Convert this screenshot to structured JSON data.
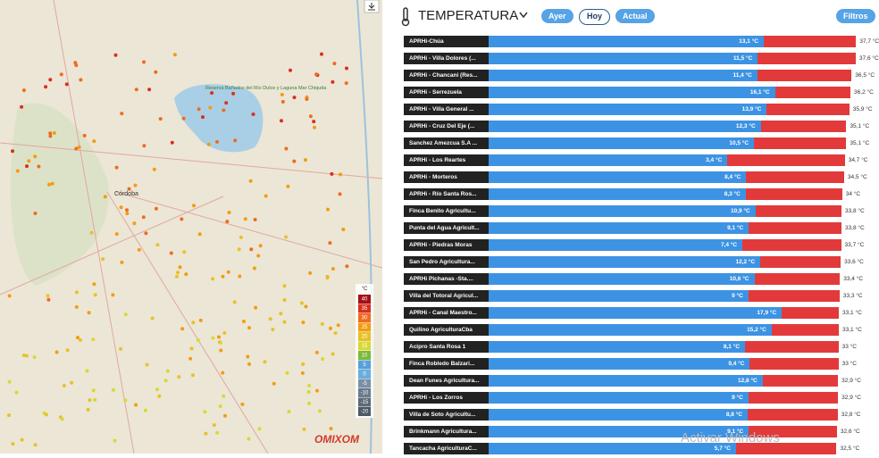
{
  "map": {
    "city": "Córdoba",
    "reserve": "Reserva Bañados del Río Dulce y Laguna Mar Chiquita",
    "logo": "OMIXOM",
    "legend_unit": "°C",
    "legend": [
      {
        "label": "40",
        "color": "#a50f15"
      },
      {
        "label": "35",
        "color": "#d7301f"
      },
      {
        "label": "30",
        "color": "#ef6b1f"
      },
      {
        "label": "25",
        "color": "#f39c12"
      },
      {
        "label": "20",
        "color": "#e6c229"
      },
      {
        "label": "15",
        "color": "#d8d835"
      },
      {
        "label": "10",
        "color": "#7cba3a"
      },
      {
        "label": "5",
        "color": "#5aa0d8"
      },
      {
        "label": "0",
        "color": "#6aaee0"
      },
      {
        "label": "-5",
        "color": "#7a8fa8"
      },
      {
        "label": "-10",
        "color": "#6c7b8b"
      },
      {
        "label": "-15",
        "color": "#5c6a78"
      },
      {
        "label": "-20",
        "color": "#4c5966"
      }
    ]
  },
  "panel": {
    "title": "TEMPERATURA",
    "buttons": [
      "Ayer",
      "Hoy",
      "Actual"
    ],
    "filters": "Filtros",
    "watermark": "Activar Windows",
    "rows": [
      {
        "name": "APRHi-Chúa",
        "min": 13.1,
        "min_label": "13,1 °C",
        "max": 37.7,
        "max_label": "37,7 °C"
      },
      {
        "name": "APRHi - Villa Dolores (...",
        "min": 11.5,
        "min_label": "11,5 °C",
        "max": 37.6,
        "max_label": "37,6 °C"
      },
      {
        "name": "APRHi - Chancani (Res...",
        "min": 11.4,
        "min_label": "11,4 °C",
        "max": 36.5,
        "max_label": "36,5 °C"
      },
      {
        "name": "APRHi - Serrezuela",
        "min": 16.1,
        "min_label": "16,1 °C",
        "max": 36.2,
        "max_label": "36,2 °C"
      },
      {
        "name": "APRHi - Villa General ...",
        "min": 13.9,
        "min_label": "13,9 °C",
        "max": 35.9,
        "max_label": "35,9 °C"
      },
      {
        "name": "APRHi - Cruz Del Eje (...",
        "min": 12.3,
        "min_label": "12,3 °C",
        "max": 35.1,
        "max_label": "35,1 °C"
      },
      {
        "name": "Sanchez Amezcua S.A ...",
        "min": 10.5,
        "min_label": "10,5 °C",
        "max": 35.1,
        "max_label": "35,1 °C"
      },
      {
        "name": "APRHi - Los Reartes",
        "min": 3.4,
        "min_label": "3,4 °C",
        "max": 34.7,
        "max_label": "34,7 °C"
      },
      {
        "name": "APRHi - Morteros",
        "min": 8.4,
        "min_label": "8,4 °C",
        "max": 34.5,
        "max_label": "34,5 °C"
      },
      {
        "name": "APRHi - Río Santa Ros...",
        "min": 8.3,
        "min_label": "8,3 °C",
        "max": 34,
        "max_label": "34 °C"
      },
      {
        "name": "Finca Benito Agricultu...",
        "min": 10.9,
        "min_label": "10,9 °C",
        "max": 33.8,
        "max_label": "33,8 °C"
      },
      {
        "name": "Punta del Agua Agricult...",
        "min": 9.1,
        "min_label": "9,1 °C",
        "max": 33.8,
        "max_label": "33,8 °C"
      },
      {
        "name": "APRHi - Piedras Moras",
        "min": 7.4,
        "min_label": "7,4 °C",
        "max": 33.7,
        "max_label": "33,7 °C"
      },
      {
        "name": "San Pedro Agricultura...",
        "min": 12.2,
        "min_label": "12,2 °C",
        "max": 33.6,
        "max_label": "33,6 °C"
      },
      {
        "name": "APRHi Pichanas -Sta....",
        "min": 10.6,
        "min_label": "10,6 °C",
        "max": 33.4,
        "max_label": "33,4 °C"
      },
      {
        "name": "Villa del Totoral Agricul...",
        "min": 9,
        "min_label": "9 °C",
        "max": 33.3,
        "max_label": "33,3 °C"
      },
      {
        "name": "APRHi - Canal Maestro...",
        "min": 17.9,
        "min_label": "17,9 °C",
        "max": 33.1,
        "max_label": "33,1 °C"
      },
      {
        "name": "Quilino AgriculturaCba",
        "min": 15.2,
        "min_label": "15,2 °C",
        "max": 33.1,
        "max_label": "33,1 °C"
      },
      {
        "name": "Acipro Santa Rosa 1",
        "min": 8.1,
        "min_label": "8,1 °C",
        "max": 33,
        "max_label": "33 °C"
      },
      {
        "name": "Finca Robledo Balzari...",
        "min": 9.4,
        "min_label": "9,4 °C",
        "max": 33,
        "max_label": "33 °C"
      },
      {
        "name": "Dean Funes Agricultura...",
        "min": 12.8,
        "min_label": "12,8 °C",
        "max": 32.9,
        "max_label": "32,9 °C"
      },
      {
        "name": "APRHi - Los Zorros",
        "min": 9,
        "min_label": "9 °C",
        "max": 32.9,
        "max_label": "32,9 °C"
      },
      {
        "name": "Villa de Soto Agricultu...",
        "min": 8.8,
        "min_label": "8,8 °C",
        "max": 32.8,
        "max_label": "32,8 °C"
      },
      {
        "name": "Brinkmann Agricultura...",
        "min": 9.1,
        "min_label": "9,1 °C",
        "max": 32.6,
        "max_label": "32,6 °C"
      },
      {
        "name": "Tancacha AgriculturaC...",
        "min": 5.7,
        "min_label": "5,7 °C",
        "max": 32.5,
        "max_label": "32,5 °C"
      }
    ]
  }
}
